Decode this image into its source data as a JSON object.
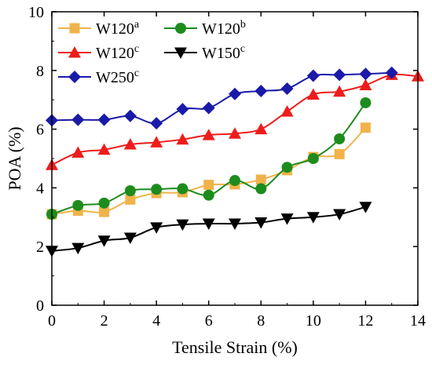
{
  "chart_data": {
    "type": "line",
    "xlabel": "Tensile Strain (%)",
    "ylabel": "POA (%)",
    "xlim": [
      0,
      14
    ],
    "ylim": [
      0,
      10
    ],
    "xticks": [
      "0",
      "2",
      "4",
      "6",
      "8",
      "10",
      "12",
      "14"
    ],
    "yticks": [
      "0",
      "2",
      "4",
      "6",
      "8",
      "10"
    ],
    "grid": false,
    "legend_position": "top-left",
    "series": [
      {
        "name": "W120",
        "superscript": "a",
        "color": "#f0b34a",
        "marker": "square",
        "x": [
          0,
          1,
          2,
          3,
          4,
          5,
          6,
          7,
          8,
          9,
          10,
          11,
          12
        ],
        "y": [
          3.1,
          3.22,
          3.18,
          3.6,
          3.82,
          3.85,
          4.1,
          4.12,
          4.28,
          4.6,
          5.05,
          5.15,
          6.05
        ]
      },
      {
        "name": "W120",
        "superscript": "b",
        "color": "#1d8c1d",
        "marker": "circle",
        "x": [
          0,
          1,
          2,
          3,
          4,
          5,
          6,
          7,
          8,
          9,
          10,
          11,
          12
        ],
        "y": [
          3.1,
          3.4,
          3.48,
          3.9,
          3.95,
          3.97,
          3.75,
          4.25,
          3.97,
          4.7,
          5.0,
          5.67,
          6.9
        ]
      },
      {
        "name": "W120",
        "superscript": "c",
        "color": "#ee1c1c",
        "marker": "triangle-up",
        "x": [
          0,
          1,
          2,
          3,
          4,
          5,
          6,
          7,
          8,
          9,
          10,
          11,
          12,
          13,
          14
        ],
        "y": [
          4.78,
          5.2,
          5.3,
          5.48,
          5.55,
          5.65,
          5.8,
          5.85,
          6.0,
          6.6,
          7.18,
          7.28,
          7.5,
          7.85,
          7.8
        ]
      },
      {
        "name": "W150",
        "superscript": "c",
        "color": "#000000",
        "marker": "triangle-down",
        "x": [
          0,
          1,
          2,
          3,
          4,
          5,
          6,
          7,
          8,
          9,
          10,
          11,
          12
        ],
        "y": [
          1.85,
          1.95,
          2.2,
          2.3,
          2.65,
          2.75,
          2.78,
          2.78,
          2.82,
          2.95,
          3.0,
          3.1,
          3.35
        ]
      },
      {
        "name": "W250",
        "superscript": "c",
        "color": "#1a1aa8",
        "marker": "diamond",
        "x": [
          0,
          1,
          2,
          3,
          4,
          5,
          6,
          7,
          8,
          9,
          10,
          11,
          12,
          13
        ],
        "y": [
          6.3,
          6.32,
          6.32,
          6.45,
          6.2,
          6.68,
          6.72,
          7.2,
          7.3,
          7.38,
          7.82,
          7.85,
          7.88,
          7.92
        ]
      }
    ]
  }
}
